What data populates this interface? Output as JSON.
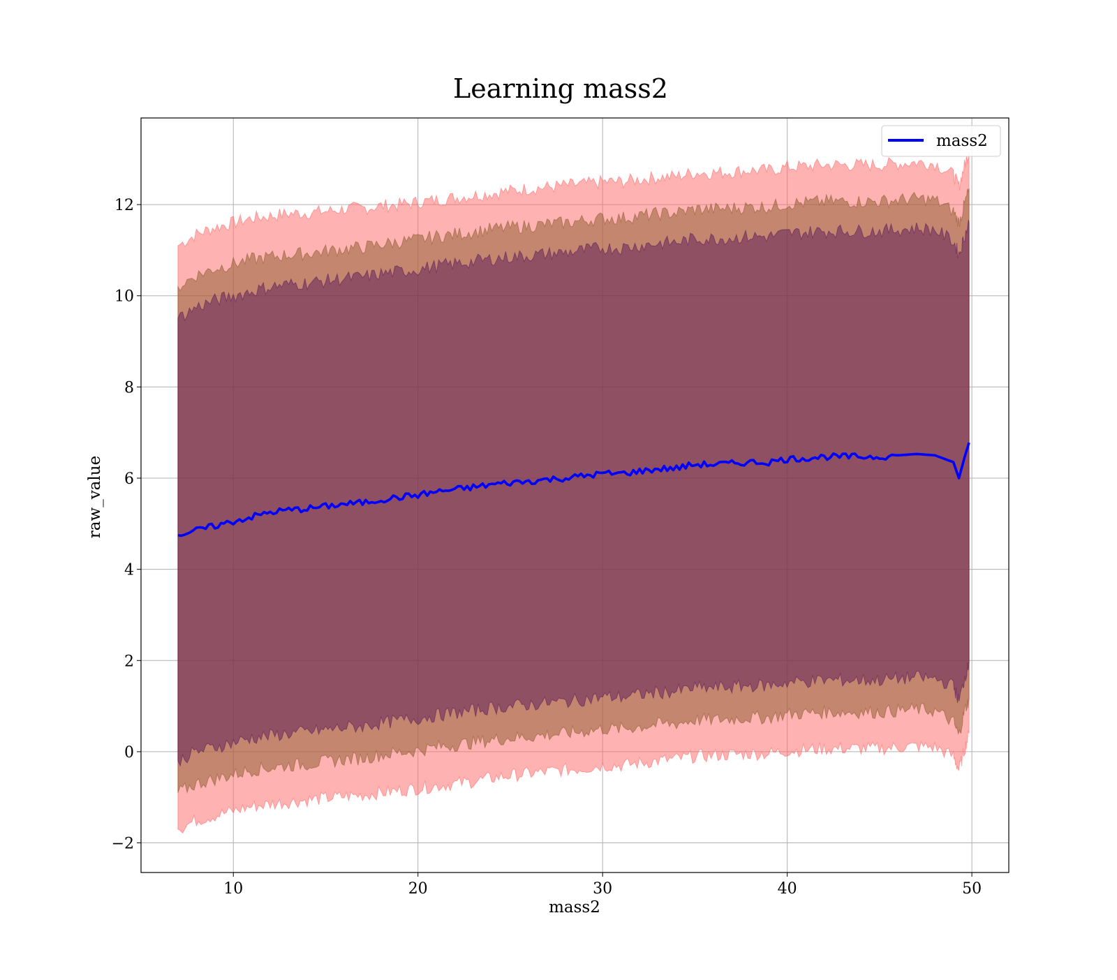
{
  "chart_data": {
    "type": "area",
    "title": "Learning mass2",
    "xlabel": "mass2",
    "ylabel": "raw_value",
    "xlim": [
      5,
      52
    ],
    "ylim": [
      -2.65,
      13.9
    ],
    "xticks": [
      10,
      20,
      30,
      40,
      50
    ],
    "yticks": [
      -2,
      0,
      2,
      4,
      6,
      8,
      10,
      12
    ],
    "xtick_labels": [
      "10",
      "20",
      "30",
      "40",
      "50"
    ],
    "ytick_labels": [
      "−2",
      "0",
      "2",
      "4",
      "6",
      "8",
      "10",
      "12"
    ],
    "grid": true,
    "legend": {
      "position": "top-right",
      "entries": [
        "mass2"
      ]
    },
    "x": [
      7,
      8,
      9,
      10,
      11,
      12,
      13,
      14,
      15,
      16,
      17,
      18,
      19,
      20,
      21,
      22,
      23,
      24,
      25,
      26,
      27,
      28,
      29,
      30,
      31,
      32,
      33,
      34,
      35,
      36,
      37,
      38,
      39,
      40,
      41,
      42,
      43,
      44,
      45,
      46,
      47,
      48,
      49,
      49.3,
      49.6,
      49.85
    ],
    "series": [
      {
        "name": "mass2",
        "color": "#0000ff",
        "values": [
          4.75,
          4.85,
          4.95,
          5.05,
          5.15,
          5.25,
          5.3,
          5.33,
          5.38,
          5.43,
          5.46,
          5.53,
          5.58,
          5.63,
          5.7,
          5.75,
          5.8,
          5.86,
          5.9,
          5.93,
          5.97,
          6.0,
          6.05,
          6.1,
          6.1,
          6.15,
          6.2,
          6.22,
          6.3,
          6.3,
          6.32,
          6.35,
          6.35,
          6.42,
          6.44,
          6.47,
          6.47,
          6.47,
          6.47,
          6.5,
          6.53,
          6.5,
          6.35,
          6.0,
          6.45,
          6.78
        ]
      }
    ],
    "bands": [
      {
        "color": "#ff6666",
        "upper": [
          11.1,
          11.35,
          11.5,
          11.6,
          11.7,
          11.75,
          11.8,
          11.82,
          11.85,
          11.9,
          11.92,
          11.97,
          12.0,
          12.05,
          12.1,
          12.15,
          12.2,
          12.25,
          12.3,
          12.35,
          12.38,
          12.42,
          12.45,
          12.5,
          12.5,
          12.55,
          12.6,
          12.62,
          12.7,
          12.7,
          12.72,
          12.75,
          12.75,
          12.82,
          12.84,
          12.87,
          12.87,
          12.87,
          12.87,
          12.9,
          12.93,
          12.9,
          12.65,
          12.4,
          12.85,
          13.15
        ],
        "lower": [
          -1.7,
          -1.5,
          -1.4,
          -1.3,
          -1.2,
          -1.15,
          -1.1,
          -1.06,
          -1.02,
          -0.98,
          -0.95,
          -0.9,
          -0.85,
          -0.8,
          -0.75,
          -0.7,
          -0.65,
          -0.58,
          -0.52,
          -0.48,
          -0.44,
          -0.4,
          -0.36,
          -0.3,
          -0.3,
          -0.25,
          -0.2,
          -0.16,
          -0.1,
          -0.08,
          -0.06,
          -0.04,
          -0.04,
          0.02,
          0.04,
          0.07,
          0.07,
          0.07,
          0.07,
          0.1,
          0.12,
          0.1,
          -0.1,
          -0.4,
          0.05,
          0.4
        ]
      },
      {
        "color": "#8b5a2b",
        "upper": [
          10.2,
          10.45,
          10.6,
          10.7,
          10.8,
          10.85,
          10.9,
          10.93,
          10.98,
          11.03,
          11.06,
          11.13,
          11.18,
          11.23,
          11.3,
          11.35,
          11.4,
          11.46,
          11.5,
          11.53,
          11.57,
          11.6,
          11.65,
          11.7,
          11.7,
          11.75,
          11.8,
          11.82,
          11.9,
          11.9,
          11.92,
          11.95,
          11.95,
          12.02,
          12.04,
          12.07,
          12.07,
          12.07,
          12.07,
          12.1,
          12.13,
          12.1,
          11.85,
          11.6,
          12.0,
          12.35
        ],
        "lower": [
          -0.9,
          -0.7,
          -0.6,
          -0.5,
          -0.4,
          -0.35,
          -0.3,
          -0.27,
          -0.22,
          -0.17,
          -0.14,
          -0.07,
          -0.02,
          0.03,
          0.1,
          0.15,
          0.2,
          0.26,
          0.3,
          0.33,
          0.37,
          0.4,
          0.45,
          0.5,
          0.5,
          0.55,
          0.6,
          0.62,
          0.7,
          0.7,
          0.72,
          0.75,
          0.75,
          0.82,
          0.84,
          0.87,
          0.87,
          0.87,
          0.87,
          0.9,
          0.93,
          0.9,
          0.65,
          0.35,
          0.9,
          1.15
        ]
      },
      {
        "color": "#5a1a5a",
        "upper": [
          9.5,
          9.75,
          9.9,
          10.0,
          10.1,
          10.2,
          10.25,
          10.28,
          10.33,
          10.38,
          10.41,
          10.48,
          10.53,
          10.58,
          10.65,
          10.7,
          10.75,
          10.81,
          10.85,
          10.88,
          10.92,
          10.95,
          11.0,
          11.05,
          11.05,
          11.1,
          11.15,
          11.17,
          11.25,
          11.25,
          11.27,
          11.3,
          11.3,
          11.37,
          11.39,
          11.42,
          11.42,
          11.42,
          11.42,
          11.45,
          11.48,
          11.45,
          11.2,
          10.9,
          11.3,
          11.6
        ],
        "lower": [
          -0.2,
          0.0,
          0.1,
          0.2,
          0.3,
          0.35,
          0.4,
          0.43,
          0.48,
          0.53,
          0.56,
          0.63,
          0.68,
          0.73,
          0.8,
          0.85,
          0.9,
          0.96,
          1.0,
          1.03,
          1.07,
          1.1,
          1.15,
          1.2,
          1.2,
          1.25,
          1.3,
          1.32,
          1.4,
          1.4,
          1.42,
          1.45,
          1.45,
          1.52,
          1.54,
          1.57,
          1.57,
          1.57,
          1.57,
          1.6,
          1.63,
          1.6,
          1.45,
          1.1,
          1.6,
          1.95
        ]
      }
    ]
  }
}
